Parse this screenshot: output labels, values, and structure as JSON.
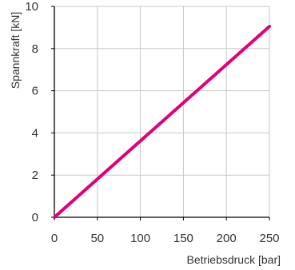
{
  "chart_data": {
    "type": "line",
    "xlabel": "Betriebsdruck [bar]",
    "ylabel": "Spannkraft [kN]",
    "xlim": [
      0,
      250
    ],
    "ylim": [
      0,
      10
    ],
    "xticks": [
      0,
      50,
      100,
      150,
      200,
      250
    ],
    "yticks": [
      0,
      2,
      4,
      6,
      8,
      10
    ],
    "grid": true,
    "series": [
      {
        "color": "#e0007a",
        "x": [
          0,
          250
        ],
        "y": [
          0,
          9.05
        ]
      }
    ]
  }
}
